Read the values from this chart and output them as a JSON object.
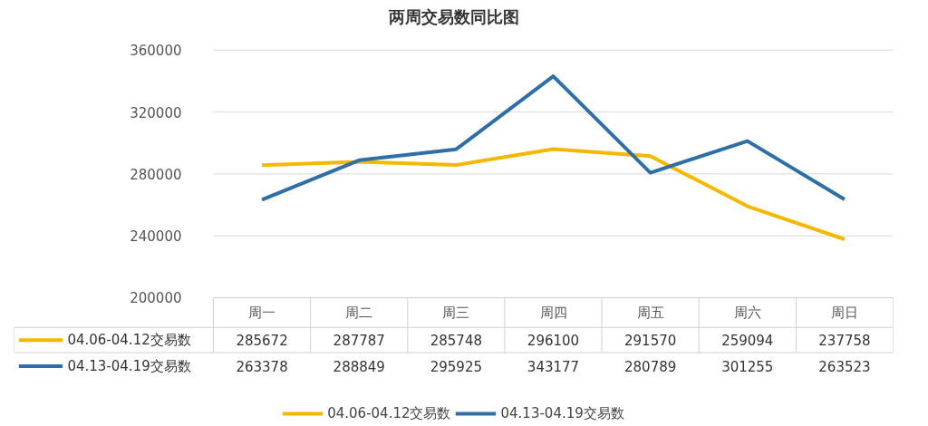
{
  "chart_data": {
    "type": "line",
    "title": "两周交易数同比图",
    "categories": [
      "周一",
      "周二",
      "周三",
      "周四",
      "周五",
      "周六",
      "周日"
    ],
    "series": [
      {
        "name": "04.06-04.12交易数",
        "color": "#f5b800",
        "values": [
          285672,
          287787,
          285748,
          296100,
          291570,
          259094,
          237758
        ]
      },
      {
        "name": "04.13-04.19交易数",
        "color": "#2e6fa7",
        "values": [
          263378,
          288849,
          295925,
          343177,
          280789,
          301255,
          263523
        ]
      }
    ],
    "ylim": [
      200000,
      360000
    ],
    "yticks": [
      200000,
      240000,
      280000,
      320000,
      360000
    ],
    "grid": "y",
    "legend": "bottom",
    "data_labels": true
  }
}
